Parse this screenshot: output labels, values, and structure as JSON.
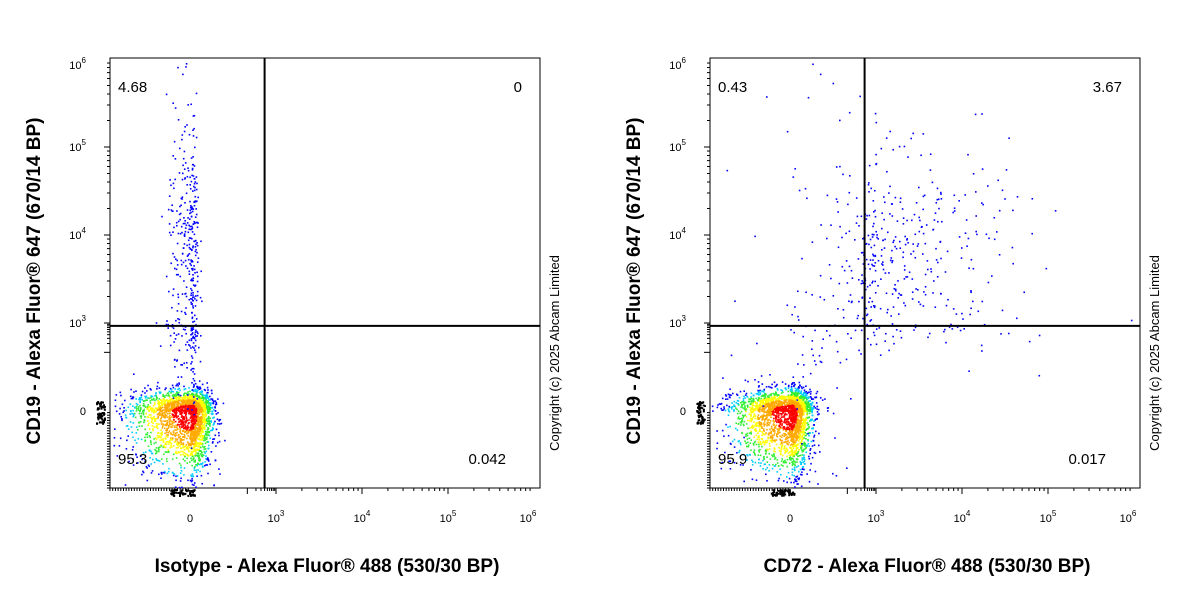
{
  "chart_data": [
    {
      "type": "scatter",
      "subtype": "flow-cytometry-density-plot",
      "xlabel": "Isotype - Alexa Fluor® 488 (530/30 BP)",
      "ylabel": "CD19 - Alexa Fluor® 647 (670/14 BP)",
      "watermark": "Copyright (c) 2025 Abcam Limited",
      "x_scale": "biexponential",
      "y_scale": "biexponential",
      "x_ticks": [
        {
          "base": "0",
          "exp": ""
        },
        {
          "base": "10",
          "exp": "3"
        },
        {
          "base": "10",
          "exp": "4"
        },
        {
          "base": "10",
          "exp": "5"
        },
        {
          "base": "10",
          "exp": "6"
        }
      ],
      "y_ticks": [
        {
          "base": "0",
          "exp": ""
        },
        {
          "base": "10",
          "exp": "3"
        },
        {
          "base": "10",
          "exp": "4"
        },
        {
          "base": "10",
          "exp": "5"
        },
        {
          "base": "10",
          "exp": "6"
        }
      ],
      "gate": {
        "x": 400,
        "y": 800
      },
      "quadrants": {
        "upper_left": "4.68",
        "upper_right": "0",
        "lower_left": "95.3",
        "lower_right": "0.042"
      },
      "populations": [
        {
          "name_hidden": true,
          "center": [
            0,
            0
          ],
          "spread": [
            0.12,
            0.12
          ],
          "count": 2600
        },
        {
          "center": [
            0,
            3.75
          ],
          "spread": [
            0.05,
            0.28
          ],
          "count": 320
        },
        {
          "center": [
            0,
            2.7
          ],
          "spread": [
            0.05,
            0.5
          ],
          "count": 90
        }
      ]
    },
    {
      "type": "scatter",
      "subtype": "flow-cytometry-density-plot",
      "xlabel": "CD72 - Alexa Fluor® 488 (530/30 BP)",
      "ylabel": "CD19 - Alexa Fluor® 647 (670/14 BP)",
      "watermark": "Copyright (c) 2025 Abcam Limited",
      "x_scale": "biexponential",
      "y_scale": "biexponential",
      "x_ticks": [
        {
          "base": "0",
          "exp": ""
        },
        {
          "base": "10",
          "exp": "3"
        },
        {
          "base": "10",
          "exp": "4"
        },
        {
          "base": "10",
          "exp": "5"
        },
        {
          "base": "10",
          "exp": "6"
        }
      ],
      "y_ticks": [
        {
          "base": "0",
          "exp": ""
        },
        {
          "base": "10",
          "exp": "3"
        },
        {
          "base": "10",
          "exp": "4"
        },
        {
          "base": "10",
          "exp": "5"
        },
        {
          "base": "10",
          "exp": "6"
        }
      ],
      "gate": {
        "x": 400,
        "y": 800
      },
      "quadrants": {
        "upper_left": "0.43",
        "upper_right": "3.67",
        "lower_left": "95.9",
        "lower_right": "0.017"
      },
      "populations": [
        {
          "center": [
            0,
            0
          ],
          "spread": [
            0.12,
            0.12
          ],
          "count": 2600
        },
        {
          "center": [
            3.25,
            3.75
          ],
          "spread": [
            0.22,
            0.2
          ],
          "count": 360
        },
        {
          "center": [
            2.3,
            3.6
          ],
          "spread": [
            0.55,
            0.35
          ],
          "count": 70
        },
        {
          "center": [
            0.6,
            2.0
          ],
          "spread": [
            0.25,
            0.7
          ],
          "count": 90
        }
      ]
    }
  ]
}
